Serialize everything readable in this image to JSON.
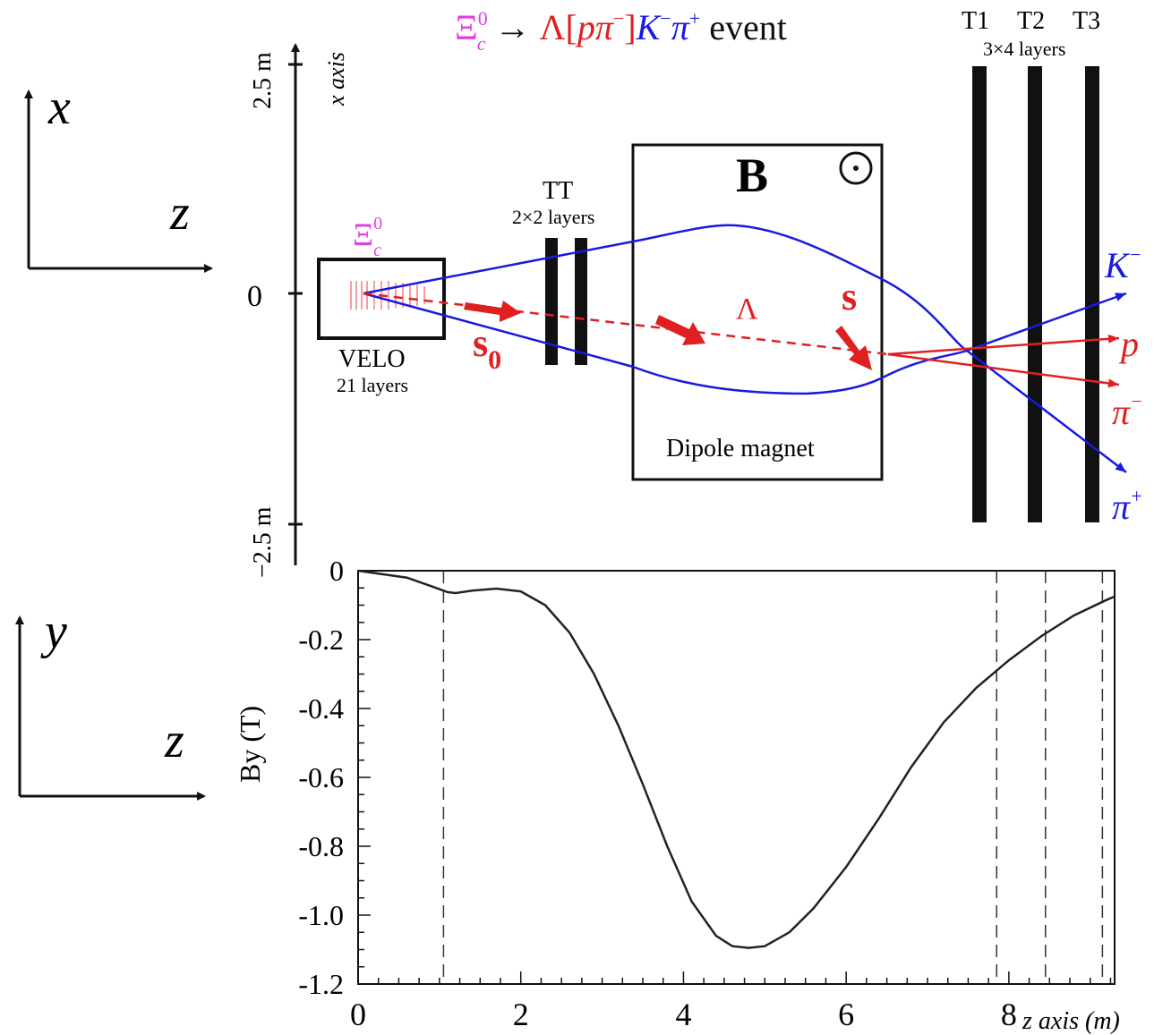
{
  "title": {
    "xi": "Ξ",
    "xi_sup": "0",
    "xi_sub": "c",
    "arrow": " → ",
    "lambda_open": "Λ[",
    "p": "p",
    "pi_minus": "π",
    "minus": "−",
    "close": "]",
    "k": "K",
    "k_sup": "−",
    "pi_plus": "π",
    "plus": "+",
    "event": " event",
    "colors": {
      "xi": "#e040e0",
      "lambda": "#e02020",
      "kpi": "#1a1ae0",
      "event": "#111111"
    }
  },
  "axes_small": {
    "x_label": "x",
    "z_label_top": "z",
    "y_label": "y",
    "z_label_bottom": "z"
  },
  "detector": {
    "x_axis_title": "x axis",
    "top_tick": "2.5 m",
    "zero_tick": "0",
    "bottom_tick": "−2.5 m",
    "velo_name": "VELO",
    "velo_layers": "21 layers",
    "xi_c0_label": "Ξ",
    "xi_c0_sup": "0",
    "xi_c0_sub": "c",
    "tt_name": "TT",
    "tt_layers": "2×2 layers",
    "magnet_field": "B",
    "magnet_name": "Dipole magnet",
    "lambda": "Λ",
    "s0": "s",
    "s0_sub": "0",
    "s": "s",
    "t1": "T1",
    "t2": "T2",
    "t3": "T3",
    "t_layers": "3×4 layers",
    "k_minus": "K",
    "k_minus_sup": "−",
    "proton": "p",
    "pi_minus": "π",
    "pi_minus_sup": "−",
    "pi_plus": "π",
    "pi_plus_sup": "+",
    "colors": {
      "track_blue": "#1a1ae0",
      "track_red": "#e02020",
      "xi_magenta": "#e040e0"
    }
  },
  "chart_data": {
    "type": "line",
    "xlabel": "z axis (m)",
    "ylabel": "By (T)",
    "xlim": [
      0,
      9.3
    ],
    "ylim": [
      -1.2,
      0
    ],
    "x_ticks": [
      "0",
      "2",
      "4",
      "6",
      "8"
    ],
    "y_ticks": [
      "0",
      "-0.2",
      "-0.4",
      "-0.6",
      "-0.8",
      "-1.0",
      "-1.2"
    ],
    "dashed_lines_z": [
      1.05,
      7.85,
      8.45,
      9.15
    ],
    "series": [
      {
        "x": [
          0,
          0.3,
          0.6,
          0.9,
          1.1,
          1.2,
          1.4,
          1.7,
          2.0,
          2.3,
          2.6,
          2.9,
          3.2,
          3.5,
          3.8,
          4.1,
          4.4,
          4.6,
          4.8,
          5.0,
          5.3,
          5.6,
          6.0,
          6.4,
          6.8,
          7.2,
          7.6,
          8.0,
          8.4,
          8.8,
          9.2,
          9.3
        ],
        "y": [
          0,
          -0.01,
          -0.02,
          -0.045,
          -0.062,
          -0.065,
          -0.058,
          -0.052,
          -0.06,
          -0.1,
          -0.18,
          -0.3,
          -0.45,
          -0.62,
          -0.8,
          -0.96,
          -1.06,
          -1.09,
          -1.095,
          -1.09,
          -1.05,
          -0.98,
          -0.86,
          -0.72,
          -0.57,
          -0.44,
          -0.34,
          -0.26,
          -0.19,
          -0.13,
          -0.085,
          -0.075
        ]
      }
    ]
  }
}
